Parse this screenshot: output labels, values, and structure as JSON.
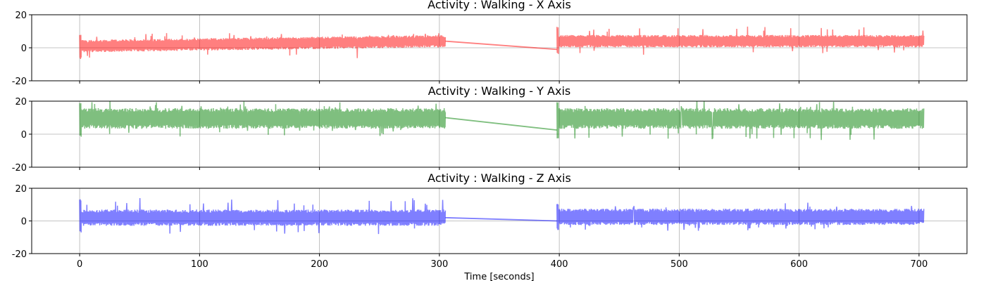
{
  "chart_data": [
    {
      "type": "line",
      "title": "Activity : Walking - X Axis",
      "color": "#ff0000",
      "alpha": 0.5,
      "xlim": [
        -40,
        740
      ],
      "ylim": [
        -20,
        20
      ],
      "yticks": [
        -20,
        0,
        20
      ],
      "xticks": [
        0,
        100,
        200,
        300,
        400,
        500,
        600,
        700
      ],
      "show_xtick_labels": false,
      "grid": true,
      "segments": [
        {
          "x_start": 0,
          "x_end": 305,
          "center_start": 1.0,
          "center_end": 4.0,
          "amplitude": 3.0,
          "spike_max": 9.0,
          "spike_min": -7.5
        },
        {
          "x_start": 398,
          "x_end": 704,
          "center_start": 4.0,
          "center_end": 4.0,
          "amplitude": 3.0,
          "spike_max": 13.0,
          "spike_min": -5.0
        }
      ],
      "connector": {
        "x": [
          305,
          398
        ],
        "y": [
          4.0,
          -1.0
        ]
      }
    },
    {
      "type": "line",
      "title": "Activity : Walking - Y Axis",
      "color": "#008000",
      "alpha": 0.5,
      "xlim": [
        -40,
        740
      ],
      "ylim": [
        -20,
        20
      ],
      "yticks": [
        -20,
        0,
        20
      ],
      "xticks": [
        0,
        100,
        200,
        300,
        400,
        500,
        600,
        700
      ],
      "show_xtick_labels": false,
      "grid": true,
      "segments": [
        {
          "x_start": 0,
          "x_end": 305,
          "center_start": 9.5,
          "center_end": 9.5,
          "amplitude": 5.0,
          "spike_max": 20.0,
          "spike_min": -2.0
        },
        {
          "x_start": 398,
          "x_end": 704,
          "center_start": 9.5,
          "center_end": 9.5,
          "amplitude": 5.0,
          "spike_max": 20.0,
          "spike_min": -4.0
        }
      ],
      "connector": {
        "x": [
          305,
          398
        ],
        "y": [
          10.0,
          2.5
        ]
      }
    },
    {
      "type": "line",
      "title": "Activity : Walking - Z Axis",
      "color": "#0000ff",
      "alpha": 0.5,
      "xlim": [
        -40,
        740
      ],
      "ylim": [
        -20,
        20
      ],
      "yticks": [
        -20,
        0,
        20
      ],
      "xticks": [
        0,
        100,
        200,
        300,
        400,
        500,
        600,
        700
      ],
      "show_xtick_labels": true,
      "xlabel": "Time [seconds]",
      "grid": true,
      "segments": [
        {
          "x_start": 0,
          "x_end": 305,
          "center_start": 2.0,
          "center_end": 2.0,
          "amplitude": 4.0,
          "spike_max": 14.0,
          "spike_min": -8.0
        },
        {
          "x_start": 398,
          "x_end": 704,
          "center_start": 2.5,
          "center_end": 2.5,
          "amplitude": 4.0,
          "spike_max": 12.0,
          "spike_min": -6.0
        }
      ],
      "connector": {
        "x": [
          305,
          398
        ],
        "y": [
          2.0,
          0.0
        ]
      }
    }
  ]
}
